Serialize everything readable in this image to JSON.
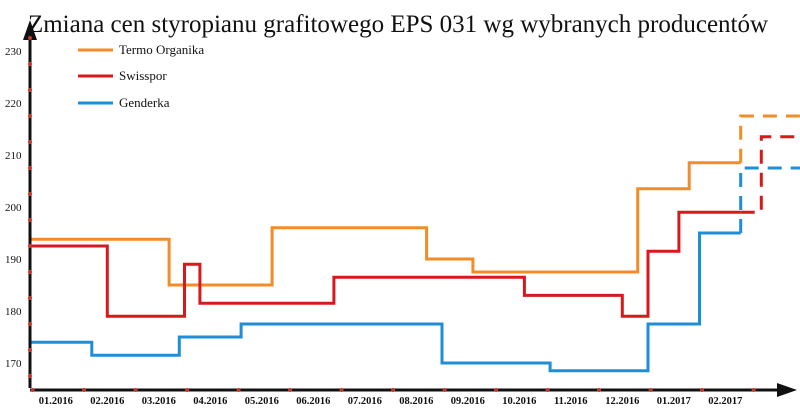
{
  "chart_data": {
    "type": "line",
    "title": "Zmiana cen styropianu grafitowego EPS 031 wg wybranych producentów",
    "xlabel": "",
    "ylabel": "",
    "ylim": [
      167,
      234
    ],
    "y_ticks": [
      170,
      180,
      190,
      200,
      210,
      220,
      230
    ],
    "x_ticks": [
      "01.2016",
      "02.2016",
      "03.2016",
      "04.2016",
      "05.2016",
      "06.2016",
      "07.2016",
      "08.2016",
      "09.2016",
      "10.2016",
      "11.2016",
      "12.2016",
      "01.2017",
      "02.2017"
    ],
    "legend_position": "top-left",
    "grid": false,
    "step": true,
    "x_unit": "months since 12.2015",
    "series": [
      {
        "name": "Termo Organika",
        "color": "#f28c28",
        "points": [
          [
            0,
            193.8
          ],
          [
            2.7,
            193.8
          ],
          [
            2.7,
            185
          ],
          [
            4.7,
            185
          ],
          [
            4.7,
            196
          ],
          [
            7.7,
            196
          ],
          [
            7.7,
            190
          ],
          [
            8.6,
            190
          ],
          [
            8.6,
            187.5
          ],
          [
            11.8,
            187.5
          ],
          [
            11.8,
            203.5
          ],
          [
            12.8,
            203.5
          ],
          [
            12.8,
            208.5
          ],
          [
            13.8,
            208.5
          ]
        ],
        "projection": [
          [
            13.8,
            208.5
          ],
          [
            13.8,
            217.5
          ],
          [
            15.5,
            217.5
          ]
        ]
      },
      {
        "name": "Swisspor",
        "color": "#d7191c",
        "points": [
          [
            0,
            192.5
          ],
          [
            1.5,
            192.5
          ],
          [
            1.5,
            179
          ],
          [
            3.0,
            179
          ],
          [
            3.0,
            189
          ],
          [
            3.3,
            189
          ],
          [
            3.3,
            181.5
          ],
          [
            5.9,
            181.5
          ],
          [
            5.9,
            186.5
          ],
          [
            9.6,
            186.5
          ],
          [
            9.6,
            183
          ],
          [
            11.5,
            183
          ],
          [
            11.5,
            179
          ],
          [
            12.0,
            179
          ],
          [
            12.0,
            191.5
          ],
          [
            12.6,
            191.5
          ],
          [
            12.6,
            199
          ],
          [
            13.8,
            199
          ]
        ],
        "projection": [
          [
            13.8,
            199
          ],
          [
            14.2,
            199
          ],
          [
            14.2,
            213.5
          ],
          [
            15.5,
            213.5
          ]
        ]
      },
      {
        "name": "Genderka",
        "color": "#1e8fd6",
        "points": [
          [
            0,
            174
          ],
          [
            1.2,
            174
          ],
          [
            1.2,
            171.5
          ],
          [
            2.9,
            171.5
          ],
          [
            2.9,
            175
          ],
          [
            4.1,
            175
          ],
          [
            4.1,
            177.5
          ],
          [
            8.0,
            177.5
          ],
          [
            8.0,
            170
          ],
          [
            10.1,
            170
          ],
          [
            10.1,
            168.5
          ],
          [
            12.0,
            168.5
          ],
          [
            12.0,
            177.5
          ],
          [
            13.0,
            177.5
          ],
          [
            13.0,
            195
          ],
          [
            13.8,
            195
          ]
        ],
        "projection": [
          [
            13.8,
            195
          ],
          [
            13.8,
            207.5
          ],
          [
            15.5,
            207.5
          ]
        ]
      }
    ]
  }
}
